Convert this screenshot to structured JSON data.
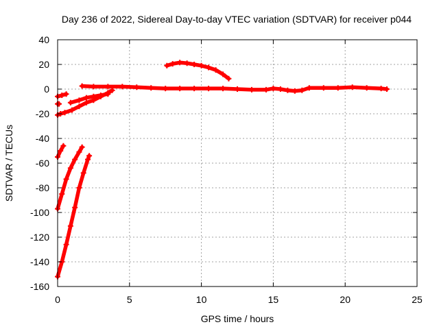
{
  "chart_data": {
    "type": "scatter",
    "title": "Day 236 of 2022, Sidereal Day-to-day VTEC variation (SDTVAR) for receiver p044",
    "xlabel": "GPS time / hours",
    "ylabel": "SDTVAR / TECUs",
    "xlim": [
      0,
      25
    ],
    "ylim": [
      -160,
      40
    ],
    "xticks": [
      0,
      5,
      10,
      15,
      20,
      25
    ],
    "yticks": [
      -160,
      -140,
      -120,
      -100,
      -80,
      -60,
      -40,
      -20,
      0,
      20,
      40
    ],
    "grid": true,
    "marker_color": "#ff0000",
    "series": [
      {
        "name": "arc-main-zero",
        "x": [
          1.7,
          2.5,
          3.5,
          4.5,
          5.5,
          6.5,
          7.5,
          8.5,
          9.5,
          10.5,
          11.5,
          12.5,
          13.5,
          14.5,
          15.0,
          15.5,
          16.0,
          16.5,
          17.0,
          17.5,
          18.5,
          19.5,
          20.5,
          21.5,
          22.5,
          22.9
        ],
        "y": [
          2.5,
          2.0,
          2.0,
          2.0,
          1.5,
          1.0,
          0.5,
          0.5,
          0.5,
          0.5,
          0.5,
          0.0,
          -0.5,
          -0.5,
          0.5,
          0.0,
          -1.0,
          -1.5,
          -1.0,
          1.0,
          1.0,
          1.0,
          1.5,
          1.0,
          0.5,
          0.0
        ]
      },
      {
        "name": "arc-positive-hump",
        "x": [
          7.6,
          8.0,
          8.5,
          9.0,
          9.5,
          10.0,
          10.5,
          11.0,
          11.5,
          11.9
        ],
        "y": [
          19,
          20.5,
          21.5,
          21,
          20,
          19,
          17.5,
          15.5,
          12,
          8.5
        ]
      },
      {
        "name": "arc-rising-a",
        "x": [
          0.0,
          0.2,
          0.5,
          1.0,
          1.5,
          2.0,
          2.5,
          3.0,
          3.5,
          3.8
        ],
        "y": [
          -21,
          -20,
          -19,
          -17,
          -14,
          -11,
          -9,
          -6,
          -3,
          -1
        ]
      },
      {
        "name": "arc-rising-b",
        "x": [
          0.9,
          1.5,
          2.0,
          2.5,
          3.0,
          3.5
        ],
        "y": [
          -11,
          -9,
          -7,
          -6,
          -5,
          -4
        ]
      },
      {
        "name": "arc-short-a",
        "x": [
          0.0,
          0.3,
          0.6
        ],
        "y": [
          -6,
          -5,
          -4
        ]
      },
      {
        "name": "arc-short-b",
        "x": [
          0.0,
          0.1
        ],
        "y": [
          -12,
          -12
        ]
      },
      {
        "name": "arc-steep-a",
        "x": [
          0.0,
          0.2,
          0.4
        ],
        "y": [
          -55,
          -50,
          -46
        ]
      },
      {
        "name": "arc-steep-b",
        "x": [
          0.0,
          0.3,
          0.6,
          0.9,
          1.2,
          1.5,
          1.7
        ],
        "y": [
          -97,
          -85,
          -73,
          -64,
          -57,
          -51,
          -47
        ]
      },
      {
        "name": "arc-steep-c",
        "x": [
          0.0,
          0.3,
          0.6,
          0.9,
          1.2,
          1.5,
          1.8,
          2.1,
          2.2
        ],
        "y": [
          -152,
          -140,
          -126,
          -111,
          -96,
          -80,
          -68,
          -57,
          -54
        ]
      }
    ]
  }
}
